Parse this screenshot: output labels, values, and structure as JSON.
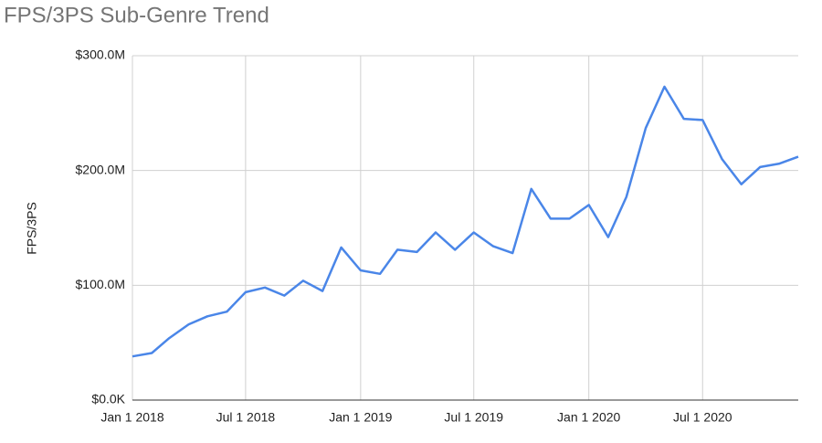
{
  "chart_data": {
    "type": "line",
    "title": "FPS/3PS Sub-Genre Trend",
    "y_label": "FPS/3PS",
    "x": [
      "2018-01-01",
      "2018-02-01",
      "2018-03-01",
      "2018-04-01",
      "2018-05-01",
      "2018-06-01",
      "2018-07-01",
      "2018-08-01",
      "2018-09-01",
      "2018-10-01",
      "2018-11-01",
      "2018-12-01",
      "2019-01-01",
      "2019-02-01",
      "2019-03-01",
      "2019-04-01",
      "2019-05-01",
      "2019-06-01",
      "2019-07-01",
      "2019-08-01",
      "2019-09-01",
      "2019-10-01",
      "2019-11-01",
      "2019-12-01",
      "2020-01-01",
      "2020-02-01",
      "2020-03-01",
      "2020-04-01",
      "2020-05-01",
      "2020-06-01",
      "2020-07-01",
      "2020-08-01",
      "2020-09-01",
      "2020-10-01",
      "2020-11-01",
      "2020-12-01"
    ],
    "values": [
      38000000,
      41000000,
      54000000,
      66000000,
      73000000,
      77000000,
      94000000,
      98000000,
      91000000,
      104000000,
      95000000,
      133000000,
      113000000,
      110000000,
      131000000,
      129000000,
      146000000,
      131000000,
      146000000,
      134000000,
      128000000,
      184000000,
      158000000,
      158000000,
      170000000,
      142000000,
      177000000,
      237000000,
      273000000,
      245000000,
      244000000,
      210000000,
      188000000,
      203000000,
      206000000,
      212000000
    ],
    "color": "#4a86e8",
    "xlim": [
      "2018-01-01",
      "2020-12-01"
    ],
    "xticks": [
      {
        "value": "2018-01-01",
        "label": "Jan 1 2018"
      },
      {
        "value": "2018-07-01",
        "label": "Jul 1 2018"
      },
      {
        "value": "2019-01-01",
        "label": "Jan 1 2019"
      },
      {
        "value": "2019-07-01",
        "label": "Jul 1 2019"
      },
      {
        "value": "2020-01-01",
        "label": "Jan 1 2020"
      },
      {
        "value": "2020-07-01",
        "label": "Jul 1 2020"
      }
    ],
    "ylim": [
      0,
      300000000
    ],
    "yticks": [
      {
        "value": 0,
        "label": "$0.0K"
      },
      {
        "value": 100000000,
        "label": "$100.0M"
      },
      {
        "value": 200000000,
        "label": "$200.0M"
      },
      {
        "value": 300000000,
        "label": "$300.0M"
      }
    ],
    "grid": true
  }
}
